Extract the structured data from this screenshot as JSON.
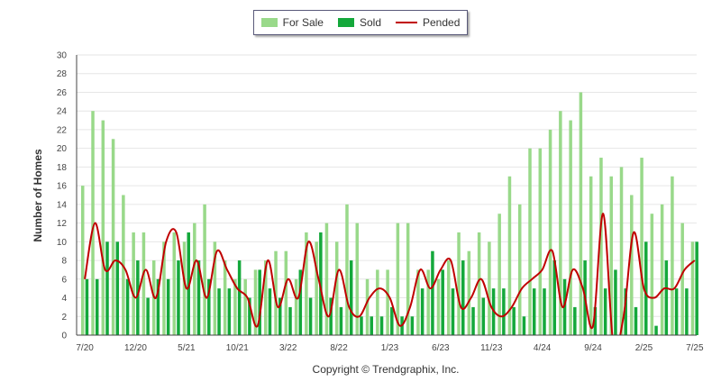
{
  "copyright": "Copyright © Trendgraphix, Inc.",
  "chart_data": {
    "type": "bar",
    "ylabel": "Number of Homes",
    "ylim": [
      0,
      30
    ],
    "yticks": [
      0,
      2,
      4,
      6,
      8,
      10,
      12,
      14,
      16,
      18,
      20,
      22,
      24,
      26,
      28,
      30
    ],
    "grid": true,
    "legend_position": "top-center",
    "x": [
      "7/20",
      "8/20",
      "9/20",
      "10/20",
      "11/20",
      "12/20",
      "1/21",
      "2/21",
      "3/21",
      "4/21",
      "5/21",
      "6/21",
      "7/21",
      "8/21",
      "9/21",
      "10/21",
      "11/21",
      "12/21",
      "1/22",
      "2/22",
      "3/22",
      "4/22",
      "5/22",
      "6/22",
      "7/22",
      "8/22",
      "9/22",
      "10/22",
      "11/22",
      "12/22",
      "1/23",
      "2/23",
      "3/23",
      "4/23",
      "5/23",
      "6/23",
      "7/23",
      "8/23",
      "9/23",
      "10/23",
      "11/23",
      "12/23",
      "1/24",
      "2/24",
      "3/24",
      "4/24",
      "5/24",
      "6/24",
      "7/24",
      "8/24",
      "9/24",
      "10/24",
      "11/24",
      "12/24",
      "1/25",
      "2/25",
      "3/25",
      "4/25",
      "5/25",
      "6/25",
      "7/25"
    ],
    "xtick_labels": [
      "7/20",
      "12/20",
      "5/21",
      "10/21",
      "3/22",
      "8/22",
      "1/23",
      "6/23",
      "11/23",
      "4/24",
      "9/24",
      "2/25",
      "7/25"
    ],
    "series": [
      {
        "name": "For Sale",
        "type": "bar",
        "color": "#99d98a",
        "values": [
          16,
          24,
          23,
          21,
          15,
          11,
          11,
          8,
          10,
          11,
          10,
          12,
          14,
          10,
          8,
          6,
          6,
          7,
          8,
          9,
          9,
          6,
          11,
          10,
          12,
          10,
          14,
          12,
          6,
          7,
          7,
          12,
          12,
          7,
          7,
          6,
          8,
          11,
          9,
          11,
          10,
          13,
          17,
          14,
          20,
          20,
          22,
          24,
          23,
          26,
          17,
          19,
          17,
          18,
          15,
          19,
          13,
          14,
          17,
          12,
          10
        ]
      },
      {
        "name": "Sold",
        "type": "bar",
        "color": "#14a83b",
        "values": [
          6,
          6,
          10,
          10,
          6,
          8,
          4,
          6,
          6,
          8,
          11,
          8,
          6,
          5,
          5,
          8,
          4,
          7,
          5,
          4,
          3,
          7,
          4,
          11,
          4,
          3,
          8,
          2,
          2,
          2,
          3,
          2,
          2,
          5,
          9,
          7,
          5,
          8,
          3,
          4,
          5,
          5,
          3,
          2,
          5,
          5,
          8,
          6,
          3,
          8,
          3,
          5,
          7,
          5,
          3,
          10,
          1,
          8,
          5,
          5,
          10
        ]
      },
      {
        "name": "Pended",
        "type": "line",
        "color": "#c00000",
        "values": [
          6,
          12,
          7,
          8,
          7,
          4,
          7,
          4,
          10,
          11,
          5,
          8,
          4,
          9,
          7,
          5,
          4,
          1,
          8,
          3,
          6,
          4,
          10,
          6,
          2,
          7,
          3,
          2,
          4,
          5,
          4,
          1,
          3,
          7,
          5,
          7,
          8,
          3,
          4,
          6,
          3,
          2,
          3,
          5,
          6,
          7,
          9,
          3,
          7,
          5,
          1,
          13,
          -1,
          2,
          11,
          5,
          4,
          5,
          5,
          7,
          8
        ]
      }
    ]
  }
}
